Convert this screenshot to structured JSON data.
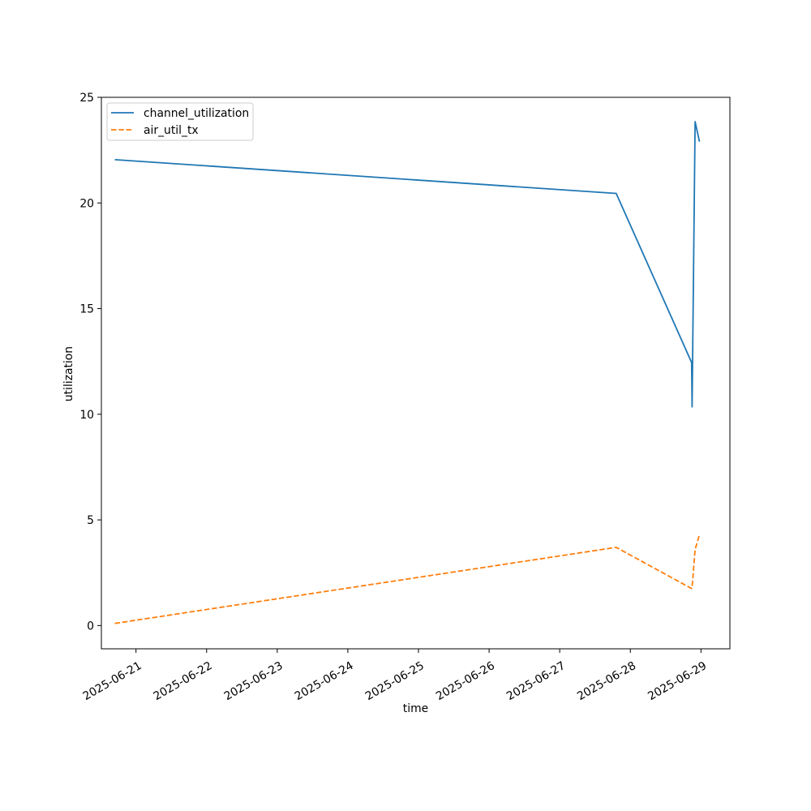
{
  "chart_data": {
    "type": "line",
    "title": "",
    "xlabel": "time",
    "ylabel": "utilization",
    "xlim": [
      "2025-06-20T12:14",
      "2025-06-29T09:50"
    ],
    "ylim": [
      -1.1,
      25
    ],
    "xticks": [
      "2025-06-21",
      "2025-06-22",
      "2025-06-23",
      "2025-06-24",
      "2025-06-25",
      "2025-06-26",
      "2025-06-27",
      "2025-06-28",
      "2025-06-29"
    ],
    "yticks": [
      0,
      5,
      10,
      15,
      20,
      25
    ],
    "grid": false,
    "legend_position": "upper-left",
    "series": [
      {
        "name": "channel_utilization",
        "color": "#1f77b4",
        "style": "solid",
        "points": [
          {
            "x": "2025-06-20T16:48",
            "y": 22.05
          },
          {
            "x": "2025-06-27T19:12",
            "y": 20.45
          },
          {
            "x": "2025-06-28T20:50",
            "y": 12.45
          },
          {
            "x": "2025-06-28T21:00",
            "y": 10.35
          },
          {
            "x": "2025-06-28T22:00",
            "y": 23.85
          },
          {
            "x": "2025-06-28T23:30",
            "y": 22.9
          }
        ]
      },
      {
        "name": "air_util_tx",
        "color": "#ff7f0e",
        "style": "dashed",
        "points": [
          {
            "x": "2025-06-20T16:48",
            "y": 0.1
          },
          {
            "x": "2025-06-27T19:12",
            "y": 3.7
          },
          {
            "x": "2025-06-28T20:50",
            "y": 1.75
          },
          {
            "x": "2025-06-28T21:00",
            "y": 1.8
          },
          {
            "x": "2025-06-28T22:00",
            "y": 3.6
          },
          {
            "x": "2025-06-28T23:30",
            "y": 4.3
          }
        ]
      }
    ]
  }
}
